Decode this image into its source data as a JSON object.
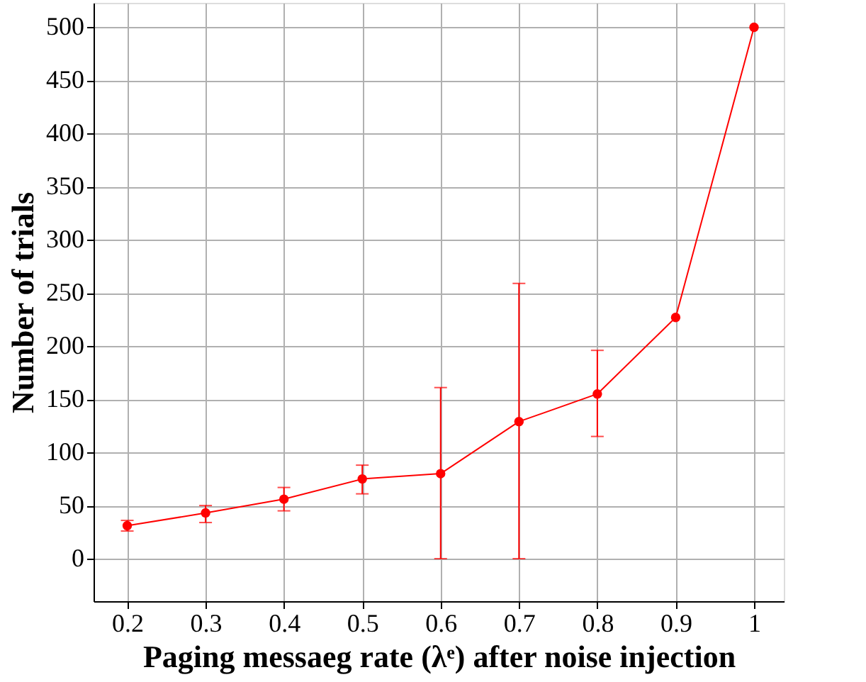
{
  "chart_data": {
    "type": "line",
    "xlabel": "Paging messaeg rate (λᵉ) after noise injection",
    "ylabel": "Number of trials",
    "x": [
      0.2,
      0.3,
      0.4,
      0.5,
      0.6,
      0.7,
      0.8,
      0.9,
      1
    ],
    "series": [
      {
        "color": "#ff0000",
        "values": [
          31,
          43,
          56,
          75,
          80,
          129,
          155,
          227,
          500
        ],
        "errors": [
          [
            26,
            36
          ],
          [
            34,
            50
          ],
          [
            45,
            67
          ],
          [
            61,
            88
          ],
          [
            0,
            161
          ],
          [
            0,
            259
          ],
          [
            115,
            196
          ],
          null,
          null
        ]
      }
    ],
    "xlim": [
      0.157,
      1.038
    ],
    "xticks": [
      0.2,
      0.3,
      0.4,
      0.5,
      0.6,
      0.7,
      0.8,
      0.9,
      1
    ],
    "ylim": [
      -40,
      523
    ],
    "yticks": [
      0,
      50,
      100,
      150,
      200,
      250,
      300,
      350,
      400,
      450,
      500
    ],
    "grid": true,
    "marker": "circle",
    "line_style": "solid"
  }
}
